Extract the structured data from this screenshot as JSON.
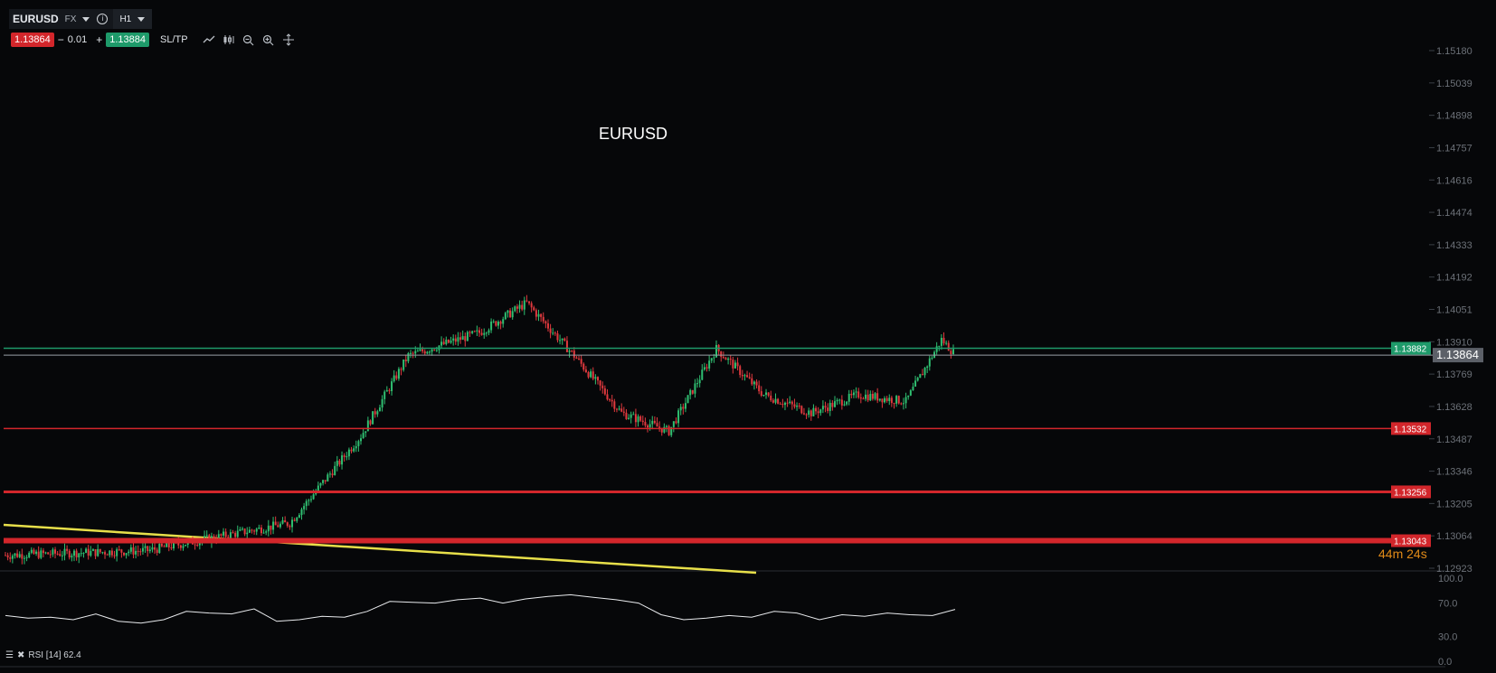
{
  "instrument": {
    "symbol": "EURUSD",
    "market": "FX",
    "timeframe": "H1"
  },
  "trade": {
    "sell_price": "1.13864",
    "minus": "−",
    "quantity": "0.01",
    "plus": "+",
    "buy_price": "1.13884",
    "sltp_label": "SL/TP"
  },
  "tools": [
    "line-chart-icon",
    "candles-icon",
    "zoom-out-icon",
    "zoom-in-icon",
    "crosshair-icon"
  ],
  "chart_title": "EURUSD",
  "price_axis": [
    "1.15180",
    "1.15039",
    "1.14898",
    "1.14757",
    "1.14616",
    "1.14474",
    "1.14333",
    "1.14192",
    "1.14051",
    "1.13910",
    "1.13769",
    "1.13628",
    "1.13487",
    "1.13346",
    "1.13205",
    "1.13064",
    "1.12923"
  ],
  "horizontal_lines": [
    {
      "price": 1.13882,
      "label": "1.13882",
      "color": "#1e9a6a"
    },
    {
      "price": 1.13532,
      "label": "1.13532",
      "color": "#d2262b"
    },
    {
      "price": 1.13256,
      "label": "1.13256",
      "color": "#d2262b"
    },
    {
      "price": 1.13043,
      "label": "1.13043",
      "color": "#d2262b"
    }
  ],
  "current_price": {
    "price": 1.13864,
    "label": "1.13864"
  },
  "countdown": "44m 24s",
  "rsi": {
    "label": "RSI [14] 62.4",
    "axis": [
      "100.0",
      "70.0",
      "30.0",
      "0.0"
    ]
  },
  "chart_data": {
    "type": "candlestick",
    "title": "EURUSD",
    "ylim": [
      1.12923,
      1.1518
    ],
    "candles_approx": [
      {
        "i": 0,
        "close": 1.1298
      },
      {
        "i": 60,
        "close": 1.13
      },
      {
        "i": 120,
        "close": 1.1312
      },
      {
        "i": 150,
        "close": 1.135
      },
      {
        "i": 170,
        "close": 1.1385
      },
      {
        "i": 200,
        "close": 1.1395
      },
      {
        "i": 220,
        "close": 1.1408
      },
      {
        "i": 240,
        "close": 1.1385
      },
      {
        "i": 260,
        "close": 1.136
      },
      {
        "i": 280,
        "close": 1.1352
      },
      {
        "i": 300,
        "close": 1.1388
      },
      {
        "i": 320,
        "close": 1.1368
      },
      {
        "i": 340,
        "close": 1.136
      },
      {
        "i": 360,
        "close": 1.1368
      },
      {
        "i": 380,
        "close": 1.1365
      },
      {
        "i": 395,
        "close": 1.1392
      },
      {
        "i": 400,
        "close": 1.13864
      }
    ],
    "rsi_series": [
      55,
      52,
      53,
      50,
      57,
      48,
      46,
      50,
      60,
      58,
      57,
      63,
      48,
      50,
      54,
      53,
      60,
      72,
      71,
      70,
      74,
      76,
      70,
      75,
      78,
      80,
      77,
      74,
      70,
      56,
      50,
      52,
      55,
      53,
      60,
      58,
      50,
      56,
      54,
      58,
      56,
      55,
      62.4
    ]
  }
}
